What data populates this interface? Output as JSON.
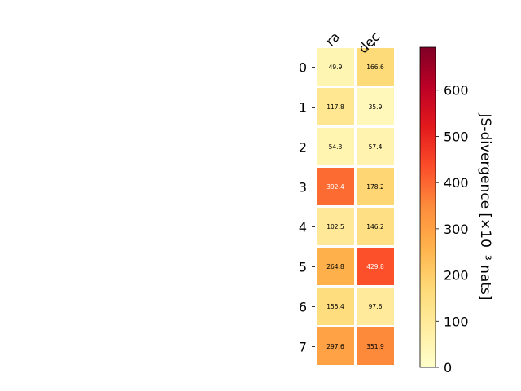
{
  "chart_data": {
    "type": "heatmap",
    "columns": [
      "ra",
      "dec"
    ],
    "rows": [
      "0",
      "1",
      "2",
      "3",
      "4",
      "5",
      "6",
      "7"
    ],
    "values": [
      [
        49.9,
        166.6
      ],
      [
        117.8,
        35.9
      ],
      [
        54.3,
        57.4
      ],
      [
        392.4,
        178.2
      ],
      [
        102.5,
        146.2
      ],
      [
        264.8,
        429.8
      ],
      [
        155.4,
        97.6
      ],
      [
        297.6,
        351.9
      ]
    ],
    "cell_labels": [
      [
        "49.9",
        "166.6"
      ],
      [
        "117.8",
        "35.9"
      ],
      [
        "54.3",
        "57.4"
      ],
      [
        "392.4",
        "178.2"
      ],
      [
        "102.5",
        "146.2"
      ],
      [
        "264.8",
        "429.8"
      ],
      [
        "155.4",
        "97.6"
      ],
      [
        "297.6",
        "351.9"
      ]
    ],
    "colorbar": {
      "label": "JS-divergence [×10⁻³ nats]",
      "range": [
        0,
        693
      ],
      "ticks": [
        0,
        100,
        200,
        300,
        400,
        500,
        600
      ],
      "tick_labels": [
        "0",
        "100",
        "200",
        "300",
        "400",
        "500",
        "600"
      ],
      "colormap": "YlOrRd"
    },
    "grid": false
  }
}
